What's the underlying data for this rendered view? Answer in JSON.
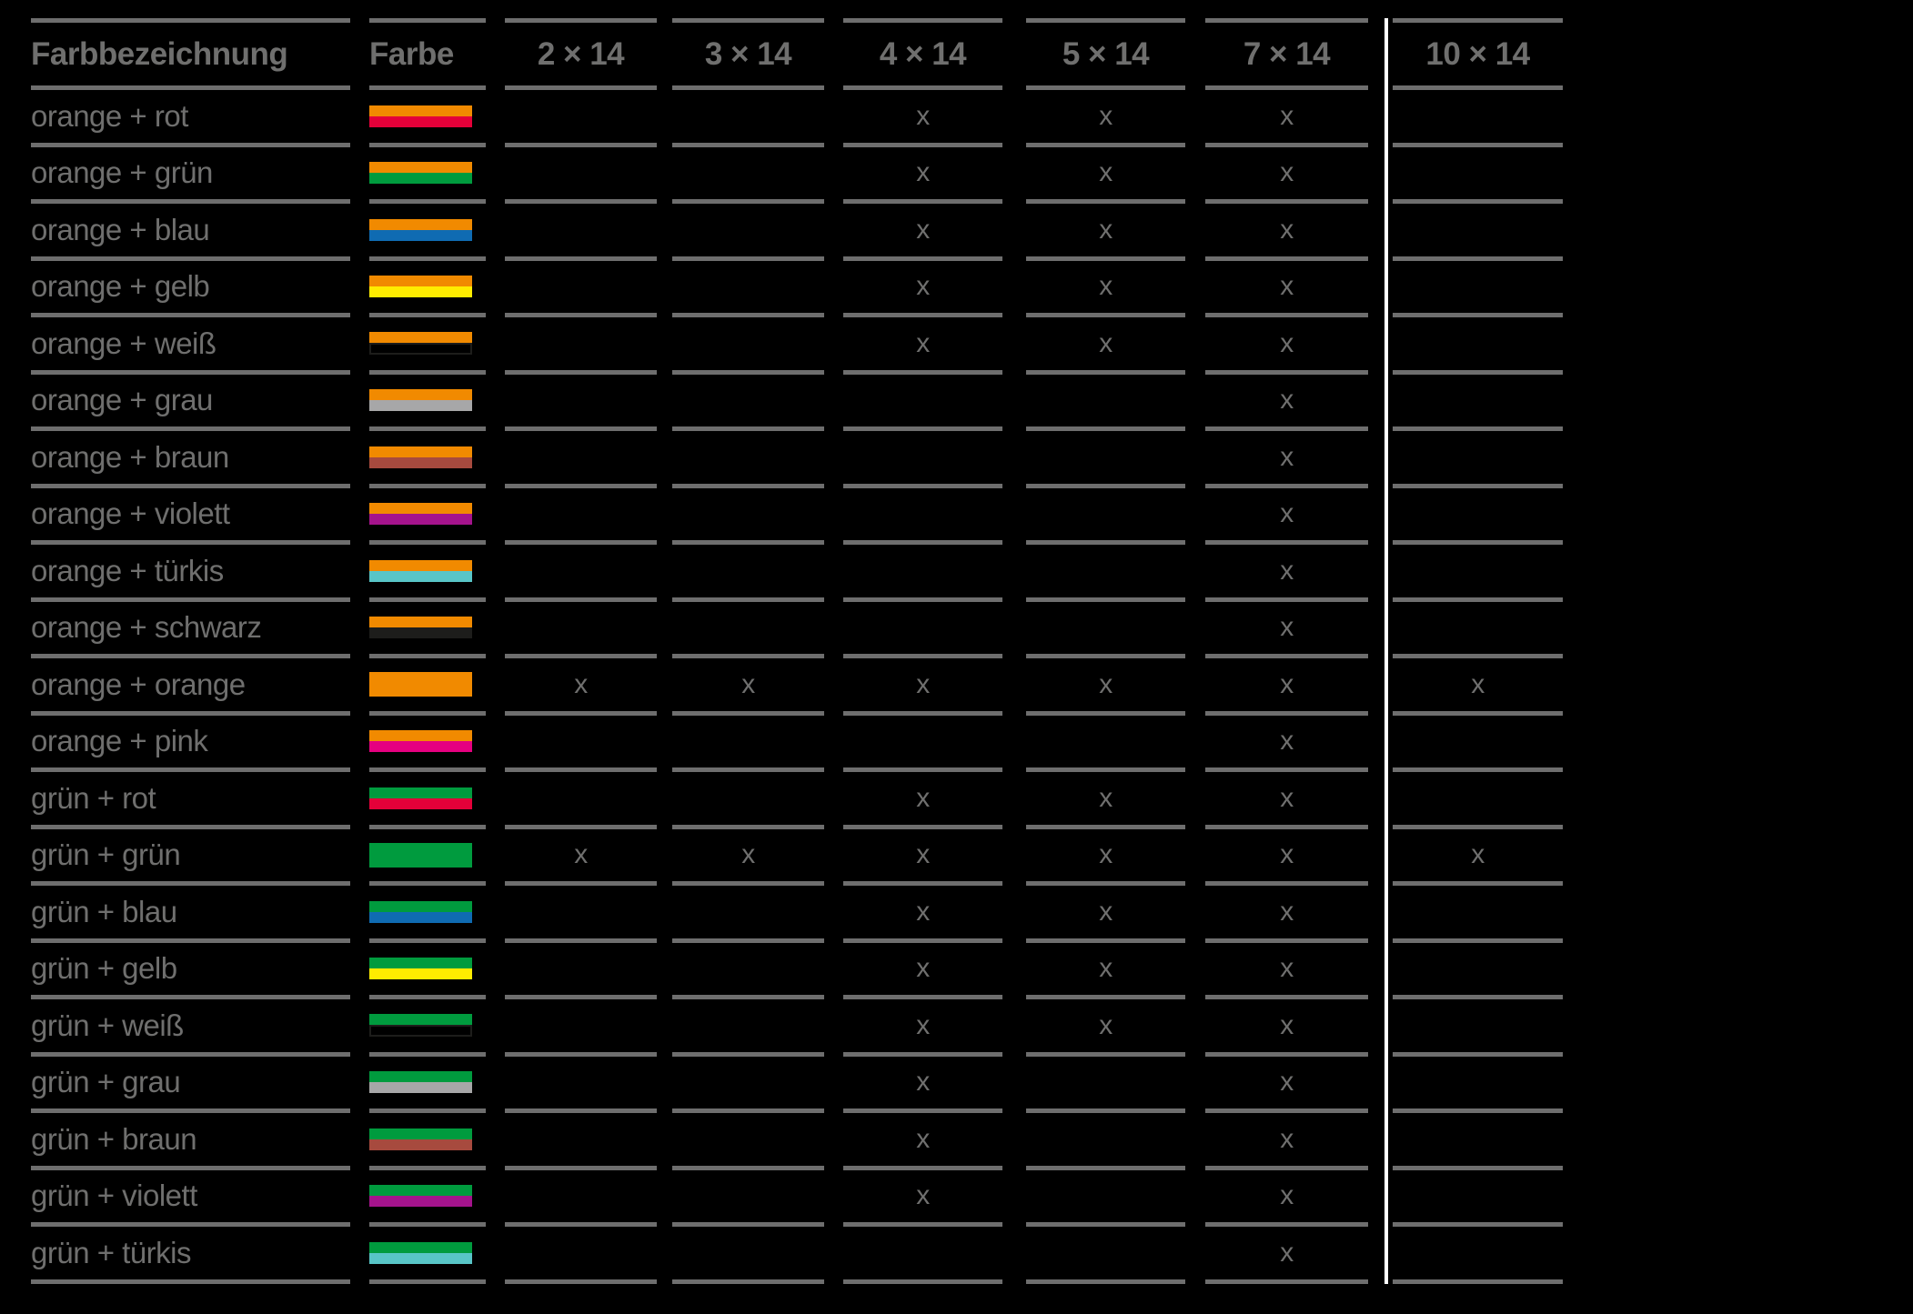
{
  "table": {
    "header": {
      "name_column_label": "Farbbezeichnung",
      "color_column_label": "Farbe",
      "size_column_labels": [
        "2 × 14",
        "3 × 14",
        "4 × 14",
        "5 × 14",
        "7 × 14",
        "10 × 14"
      ]
    },
    "mark_glyph": "x",
    "rows": [
      {
        "label": "orange + rot",
        "stripes": [
          "orange",
          "rot"
        ],
        "marks": [
          0,
          0,
          1,
          1,
          1,
          0
        ]
      },
      {
        "label": "orange + grün",
        "stripes": [
          "orange",
          "gruen"
        ],
        "marks": [
          0,
          0,
          1,
          1,
          1,
          0
        ]
      },
      {
        "label": "orange + blau",
        "stripes": [
          "orange",
          "blau"
        ],
        "marks": [
          0,
          0,
          1,
          1,
          1,
          0
        ]
      },
      {
        "label": "orange + gelb",
        "stripes": [
          "orange",
          "gelb"
        ],
        "marks": [
          0,
          0,
          1,
          1,
          1,
          0
        ]
      },
      {
        "label": "orange + weiß",
        "stripes": [
          "orange",
          "weiss"
        ],
        "marks": [
          0,
          0,
          1,
          1,
          1,
          0
        ]
      },
      {
        "label": "orange + grau",
        "stripes": [
          "orange",
          "grau"
        ],
        "marks": [
          0,
          0,
          0,
          0,
          1,
          0
        ]
      },
      {
        "label": "orange + braun",
        "stripes": [
          "orange",
          "braun"
        ],
        "marks": [
          0,
          0,
          0,
          0,
          1,
          0
        ]
      },
      {
        "label": "orange + violett",
        "stripes": [
          "orange",
          "violett"
        ],
        "marks": [
          0,
          0,
          0,
          0,
          1,
          0
        ]
      },
      {
        "label": "orange + türkis",
        "stripes": [
          "orange",
          "tuerkis"
        ],
        "marks": [
          0,
          0,
          0,
          0,
          1,
          0
        ]
      },
      {
        "label": "orange + schwarz",
        "stripes": [
          "orange",
          "schwarz"
        ],
        "marks": [
          0,
          0,
          0,
          0,
          1,
          0
        ]
      },
      {
        "label": "orange + orange",
        "stripes": [
          "orange"
        ],
        "marks": [
          1,
          1,
          1,
          1,
          1,
          1
        ]
      },
      {
        "label": "orange + pink",
        "stripes": [
          "orange",
          "pink"
        ],
        "marks": [
          0,
          0,
          0,
          0,
          1,
          0
        ]
      },
      {
        "label": "grün + rot",
        "stripes": [
          "gruen",
          "rot"
        ],
        "marks": [
          0,
          0,
          1,
          1,
          1,
          0
        ]
      },
      {
        "label": "grün + grün",
        "stripes": [
          "gruen"
        ],
        "marks": [
          1,
          1,
          1,
          1,
          1,
          1
        ]
      },
      {
        "label": "grün + blau",
        "stripes": [
          "gruen",
          "blau"
        ],
        "marks": [
          0,
          0,
          1,
          1,
          1,
          0
        ]
      },
      {
        "label": "grün + gelb",
        "stripes": [
          "gruen",
          "gelb"
        ],
        "marks": [
          0,
          0,
          1,
          1,
          1,
          0
        ]
      },
      {
        "label": "grün + weiß",
        "stripes": [
          "gruen",
          "weiss"
        ],
        "marks": [
          0,
          0,
          1,
          1,
          1,
          0
        ]
      },
      {
        "label": "grün + grau",
        "stripes": [
          "gruen",
          "grau"
        ],
        "marks": [
          0,
          0,
          1,
          0,
          1,
          0
        ]
      },
      {
        "label": "grün + braun",
        "stripes": [
          "gruen",
          "braun"
        ],
        "marks": [
          0,
          0,
          1,
          0,
          1,
          0
        ]
      },
      {
        "label": "grün + violett",
        "stripes": [
          "gruen",
          "violett"
        ],
        "marks": [
          0,
          0,
          1,
          0,
          1,
          0
        ]
      },
      {
        "label": "grün + türkis",
        "stripes": [
          "gruen",
          "tuerkis"
        ],
        "marks": [
          0,
          0,
          0,
          0,
          1,
          0
        ]
      }
    ]
  },
  "colors": {
    "orange": "#f18a00",
    "rot": "#e40039",
    "gruen": "#009b3e",
    "blau": "#0f6bb2",
    "gelb": "#ffec00",
    "weiss": "outline",
    "grau": "#a7a7a8",
    "braun": "#a74a3e",
    "violett": "#a4138c",
    "tuerkis": "#58c5c7",
    "schwarz": "#1d1d1b",
    "pink": "#e50080"
  },
  "style_colors": {
    "background": "#000000",
    "grid_line": "#6e6e6e",
    "text": "#6f6f6e",
    "highlight_separator": "#ffffff",
    "swatch_outline": "#1d1d1b"
  }
}
